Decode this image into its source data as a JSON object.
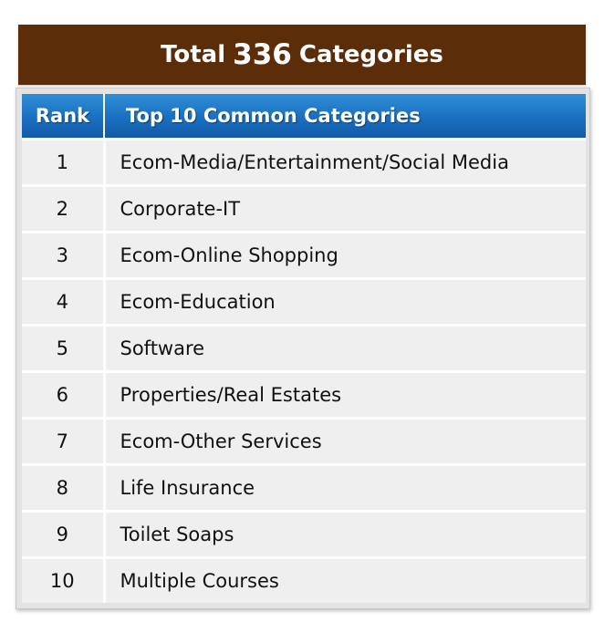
{
  "banner": {
    "prefix": "Total",
    "count": "336",
    "suffix": "Categories"
  },
  "table": {
    "headers": {
      "rank": "Rank",
      "category": "Top 10 Common Categories"
    },
    "rows": [
      {
        "rank": "1",
        "category": "Ecom-Media/Entertainment/Social Media"
      },
      {
        "rank": "2",
        "category": "Corporate-IT"
      },
      {
        "rank": "3",
        "category": "Ecom-Online Shopping"
      },
      {
        "rank": "4",
        "category": "Ecom-Education"
      },
      {
        "rank": "5",
        "category": "Software"
      },
      {
        "rank": "6",
        "category": "Properties/Real Estates"
      },
      {
        "rank": "7",
        "category": "Ecom-Other Services"
      },
      {
        "rank": "8",
        "category": "Life Insurance"
      },
      {
        "rank": "9",
        "category": "Toilet Soaps"
      },
      {
        "rank": "10",
        "category": "Multiple Courses"
      }
    ]
  },
  "colors": {
    "banner_bg": "#5c2d09",
    "header_bg": "#1a6fc0",
    "row_bg": "#efefef"
  }
}
